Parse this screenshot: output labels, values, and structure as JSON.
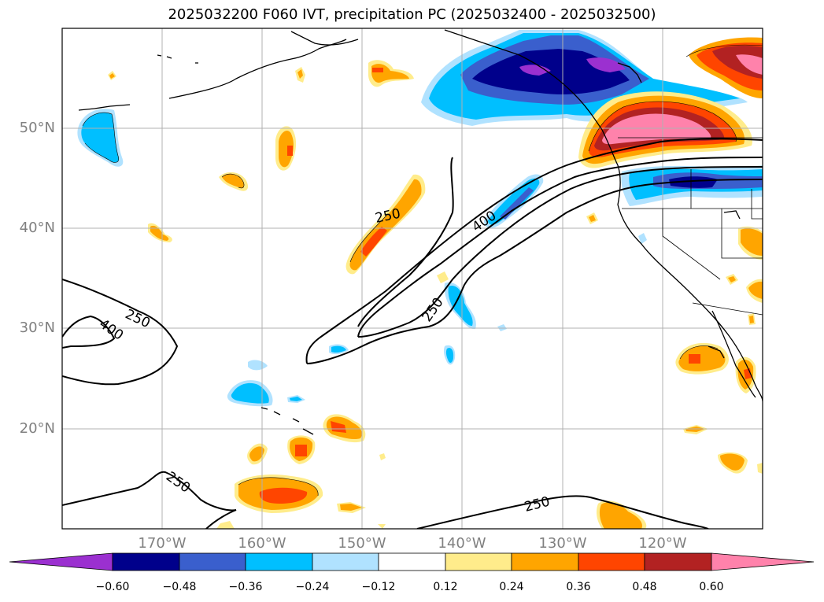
{
  "title": "2025032200 F060 IVT, precipitation PC (2025032400 - 2025032500)",
  "lat_labels": [
    "50°N",
    "40°N",
    "30°N",
    "20°N"
  ],
  "lon_labels": [
    "170°W",
    "160°W",
    "150°W",
    "140°W",
    "130°W",
    "120°W"
  ],
  "ivt_contour_labels": [
    "250",
    "400",
    "250",
    "400",
    "250",
    "250",
    "250"
  ],
  "colorbar": {
    "ticks": [
      "−0.60",
      "−0.48",
      "−0.36",
      "−0.24",
      "−0.12",
      "0.12",
      "0.24",
      "0.36",
      "0.48",
      "0.60"
    ],
    "colors": [
      "#9b30d0",
      "#00008b",
      "#3a5fcd",
      "#00bfff",
      "#b0e2ff",
      "#ffffff",
      "#ffec8b",
      "#ffa500",
      "#ff4500",
      "#b22222",
      "#ff82ab"
    ]
  }
}
